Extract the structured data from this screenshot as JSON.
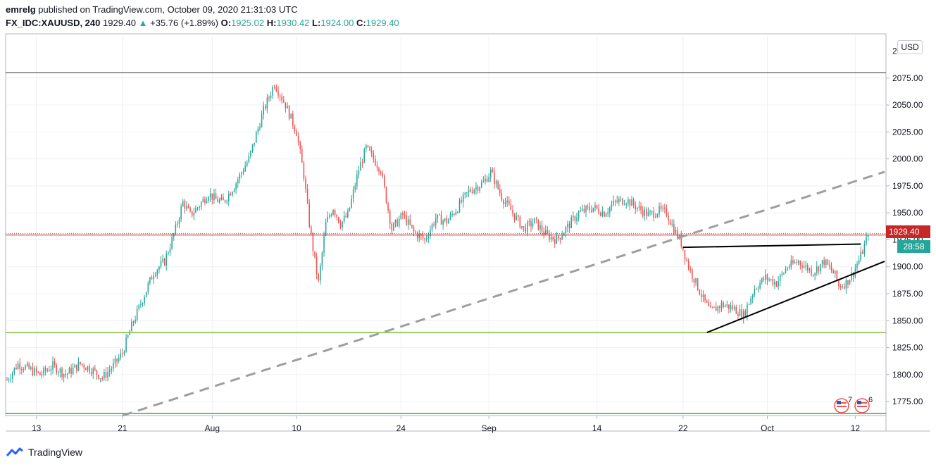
{
  "header": {
    "author": "emrelg",
    "published_text": "published on TradingView.com, October 09, 2020 21:31:03 UTC",
    "symbol": "FX_IDC:XAUUSD, 240",
    "last": "1929.40",
    "change_arrow": "▲",
    "change": "+35.76 (+1.89%)",
    "o_label": "O:",
    "o_value": "1925.02",
    "h_label": "H:",
    "h_value": "1930.42",
    "l_label": "L:",
    "l_value": "1924.00",
    "c_label": "C:",
    "c_value": "1929.40"
  },
  "currency_button": "USD",
  "price_badge": "1929.40",
  "countdown_badge": "28:58",
  "event_counts": [
    "7",
    "6"
  ],
  "footer": {
    "logo_text": "TradingView"
  },
  "colors": {
    "up": "#26a69a",
    "down": "#ef5350",
    "price_line": "#c62828",
    "green_line": "#8bc34a",
    "green_line2": "#4caf50",
    "gray_line": "#757575"
  },
  "chart_data": {
    "type": "candlestick",
    "title": "FX_IDC:XAUUSD, 240",
    "ylim": [
      1762,
      2116
    ],
    "y_ticks": [
      1775,
      1800,
      1825,
      1850,
      1875,
      1900,
      1925,
      1950,
      1975,
      2000,
      2025,
      2050,
      2075
    ],
    "y_tick_labels": [
      "1775.00",
      "1800.00",
      "1825.00",
      "1850.00",
      "1875.00",
      "1900.00",
      "1925.00",
      "1950.00",
      "1975.00",
      "2000.00",
      "2025.00",
      "2050.00",
      "2075.00"
    ],
    "y_top_label": "2 0",
    "x_tick_labels": [
      "13",
      "21",
      "Aug",
      "10",
      "24",
      "Sep",
      "14",
      "22",
      "Oct",
      "12"
    ],
    "x_tick_index": [
      16,
      63,
      112,
      158,
      215,
      263,
      322,
      369,
      415,
      463
    ],
    "num_bars": 480,
    "close_path": [
      [
        0,
        1795
      ],
      [
        6,
        1810
      ],
      [
        12,
        1805
      ],
      [
        18,
        1800
      ],
      [
        25,
        1808
      ],
      [
        32,
        1800
      ],
      [
        40,
        1810
      ],
      [
        46,
        1805
      ],
      [
        52,
        1797
      ],
      [
        58,
        1808
      ],
      [
        63,
        1820
      ],
      [
        68,
        1845
      ],
      [
        74,
        1870
      ],
      [
        80,
        1895
      ],
      [
        86,
        1905
      ],
      [
        92,
        1935
      ],
      [
        96,
        1960
      ],
      [
        100,
        1948
      ],
      [
        104,
        1955
      ],
      [
        110,
        1968
      ],
      [
        114,
        1962
      ],
      [
        118,
        1960
      ],
      [
        124,
        1975
      ],
      [
        132,
        2000
      ],
      [
        140,
        2045
      ],
      [
        146,
        2070
      ],
      [
        152,
        2050
      ],
      [
        158,
        2025
      ],
      [
        162,
        1985
      ],
      [
        165,
        1940
      ],
      [
        168,
        1905
      ],
      [
        170,
        1885
      ],
      [
        174,
        1940
      ],
      [
        178,
        1955
      ],
      [
        182,
        1940
      ],
      [
        186,
        1948
      ],
      [
        192,
        1990
      ],
      [
        196,
        2010
      ],
      [
        200,
        2000
      ],
      [
        204,
        1990
      ],
      [
        210,
        1935
      ],
      [
        216,
        1948
      ],
      [
        222,
        1932
      ],
      [
        228,
        1925
      ],
      [
        234,
        1945
      ],
      [
        240,
        1942
      ],
      [
        246,
        1955
      ],
      [
        252,
        1970
      ],
      [
        260,
        1978
      ],
      [
        264,
        1988
      ],
      [
        270,
        1965
      ],
      [
        276,
        1950
      ],
      [
        282,
        1935
      ],
      [
        288,
        1942
      ],
      [
        294,
        1930
      ],
      [
        300,
        1925
      ],
      [
        305,
        1935
      ],
      [
        312,
        1950
      ],
      [
        320,
        1955
      ],
      [
        326,
        1950
      ],
      [
        332,
        1960
      ],
      [
        338,
        1962
      ],
      [
        344,
        1955
      ],
      [
        350,
        1948
      ],
      [
        356,
        1952
      ],
      [
        360,
        1950
      ],
      [
        364,
        1935
      ],
      [
        368,
        1922
      ],
      [
        372,
        1900
      ],
      [
        376,
        1885
      ],
      [
        380,
        1870
      ],
      [
        384,
        1858
      ],
      [
        390,
        1865
      ],
      [
        396,
        1862
      ],
      [
        402,
        1855
      ],
      [
        408,
        1880
      ],
      [
        414,
        1890
      ],
      [
        420,
        1885
      ],
      [
        426,
        1900
      ],
      [
        432,
        1905
      ],
      [
        436,
        1900
      ],
      [
        440,
        1895
      ],
      [
        446,
        1905
      ],
      [
        452,
        1892
      ],
      [
        454,
        1882
      ],
      [
        458,
        1885
      ],
      [
        462,
        1895
      ],
      [
        466,
        1910
      ],
      [
        470,
        1929.4
      ]
    ],
    "horizontal_levels": [
      {
        "name": "resistance",
        "price": 2080,
        "color": "#757575"
      },
      {
        "name": "current-price",
        "price": 1929.4,
        "color": "#c62828"
      },
      {
        "name": "support",
        "price": 1839,
        "color": "#8bc34a"
      },
      {
        "name": "support-2",
        "price": 1764,
        "color": "#4caf50"
      }
    ],
    "trend_lines": [
      {
        "name": "dashed-trendline",
        "style": "dashed",
        "color": "#9e9e9e",
        "from": [
          63,
          1762
        ],
        "to": [
          479,
          1988
        ]
      },
      {
        "name": "triangle-top",
        "style": "solid",
        "color": "#000000",
        "from": [
          369,
          1918
        ],
        "to": [
          466,
          1921
        ]
      },
      {
        "name": "triangle-bottom",
        "style": "solid",
        "color": "#000000",
        "from": [
          382,
          1839
        ],
        "to": [
          479,
          1905
        ]
      }
    ]
  }
}
